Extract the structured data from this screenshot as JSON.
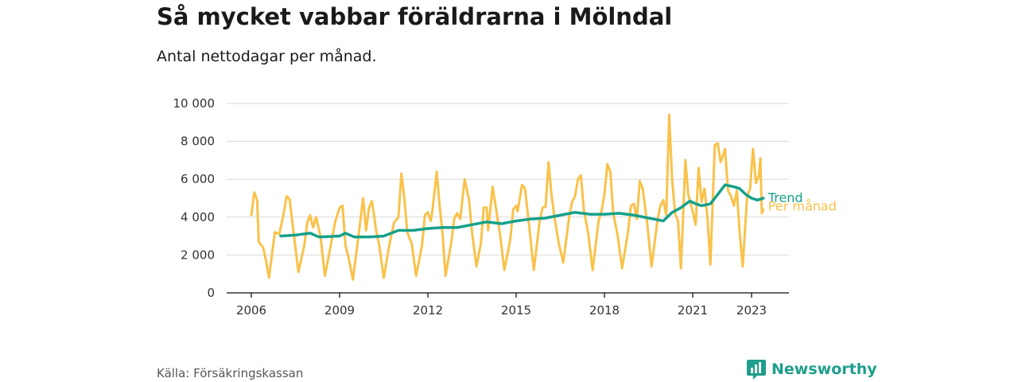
{
  "header": {
    "title": "Så mycket vabbar föräldrarna i Mölndal",
    "subtitle": "Antal nettodagar per månad."
  },
  "footer": {
    "source": "Källa: Försäkringskassan",
    "brand": "Newsworthy"
  },
  "colors": {
    "monthly": "#f9c24b",
    "trend": "#16a08a",
    "grid": "#d8d8d8",
    "axis": "#333333",
    "brand": "#1f9e8c"
  },
  "chart_data": {
    "type": "line",
    "title": "Så mycket vabbar föräldrarna i Mölndal",
    "subtitle": "Antal nettodagar per månad.",
    "xlabel": "",
    "ylabel": "",
    "ylim": [
      0,
      10000
    ],
    "xlim": [
      2005.6,
      2024.2
    ],
    "yticks": [
      0,
      2000,
      4000,
      6000,
      8000,
      10000
    ],
    "ytick_labels": [
      "0",
      "2 000",
      "4 000",
      "6 000",
      "8 000",
      "10 000"
    ],
    "xticks": [
      2006,
      2009,
      2012,
      2015,
      2018,
      2021,
      2023
    ],
    "xtick_labels": [
      "2006",
      "2009",
      "2012",
      "2015",
      "2018",
      "2021",
      "2023"
    ],
    "grid": true,
    "legend": "end-of-line labels",
    "series": [
      {
        "name": "Trend",
        "color": "#16a08a",
        "points": [
          [
            2007.0,
            3000
          ],
          [
            2007.5,
            3050
          ],
          [
            2008.0,
            3150
          ],
          [
            2008.3,
            2950
          ],
          [
            2009.0,
            3000
          ],
          [
            2009.2,
            3150
          ],
          [
            2009.5,
            2950
          ],
          [
            2010.0,
            2950
          ],
          [
            2010.5,
            3000
          ],
          [
            2011.0,
            3300
          ],
          [
            2011.5,
            3300
          ],
          [
            2012.0,
            3400
          ],
          [
            2012.5,
            3450
          ],
          [
            2013.0,
            3450
          ],
          [
            2013.5,
            3600
          ],
          [
            2014.0,
            3750
          ],
          [
            2014.5,
            3650
          ],
          [
            2015.0,
            3800
          ],
          [
            2015.5,
            3900
          ],
          [
            2016.0,
            3950
          ],
          [
            2016.5,
            4100
          ],
          [
            2017.0,
            4250
          ],
          [
            2017.5,
            4150
          ],
          [
            2018.0,
            4150
          ],
          [
            2018.5,
            4200
          ],
          [
            2019.0,
            4100
          ],
          [
            2019.5,
            3950
          ],
          [
            2020.0,
            3800
          ],
          [
            2020.3,
            4250
          ],
          [
            2020.6,
            4500
          ],
          [
            2020.9,
            4850
          ],
          [
            2021.1,
            4700
          ],
          [
            2021.3,
            4600
          ],
          [
            2021.6,
            4700
          ],
          [
            2021.9,
            5300
          ],
          [
            2022.1,
            5700
          ],
          [
            2022.4,
            5600
          ],
          [
            2022.6,
            5500
          ],
          [
            2022.8,
            5200
          ],
          [
            2023.0,
            5000
          ],
          [
            2023.2,
            4900
          ],
          [
            2023.4,
            5000
          ]
        ]
      },
      {
        "name": "Per månad",
        "color": "#f9c24b",
        "points": [
          [
            2006.0,
            4100
          ],
          [
            2006.1,
            5300
          ],
          [
            2006.2,
            4900
          ],
          [
            2006.25,
            2700
          ],
          [
            2006.4,
            2400
          ],
          [
            2006.5,
            1700
          ],
          [
            2006.6,
            800
          ],
          [
            2006.8,
            3200
          ],
          [
            2006.95,
            3100
          ],
          [
            2007.1,
            4200
          ],
          [
            2007.2,
            5100
          ],
          [
            2007.3,
            4950
          ],
          [
            2007.45,
            3000
          ],
          [
            2007.6,
            1100
          ],
          [
            2007.8,
            2500
          ],
          [
            2007.9,
            3700
          ],
          [
            2008.0,
            4100
          ],
          [
            2008.1,
            3450
          ],
          [
            2008.2,
            4000
          ],
          [
            2008.35,
            3000
          ],
          [
            2008.5,
            900
          ],
          [
            2008.7,
            2500
          ],
          [
            2008.85,
            3750
          ],
          [
            2009.0,
            4500
          ],
          [
            2009.1,
            4600
          ],
          [
            2009.2,
            2500
          ],
          [
            2009.3,
            1900
          ],
          [
            2009.45,
            700
          ],
          [
            2009.6,
            2500
          ],
          [
            2009.8,
            5000
          ],
          [
            2009.9,
            3300
          ],
          [
            2010.0,
            4500
          ],
          [
            2010.1,
            4850
          ],
          [
            2010.25,
            3200
          ],
          [
            2010.35,
            2500
          ],
          [
            2010.5,
            800
          ],
          [
            2010.7,
            2600
          ],
          [
            2010.85,
            3700
          ],
          [
            2011.0,
            4000
          ],
          [
            2011.1,
            6300
          ],
          [
            2011.2,
            5000
          ],
          [
            2011.3,
            3200
          ],
          [
            2011.45,
            2600
          ],
          [
            2011.6,
            900
          ],
          [
            2011.8,
            2500
          ],
          [
            2011.9,
            4100
          ],
          [
            2012.0,
            4250
          ],
          [
            2012.1,
            3800
          ],
          [
            2012.15,
            4300
          ],
          [
            2012.3,
            6400
          ],
          [
            2012.4,
            4600
          ],
          [
            2012.5,
            3100
          ],
          [
            2012.6,
            900
          ],
          [
            2012.8,
            2700
          ],
          [
            2012.9,
            3950
          ],
          [
            2013.0,
            4200
          ],
          [
            2013.1,
            3900
          ],
          [
            2013.25,
            6000
          ],
          [
            2013.4,
            4900
          ],
          [
            2013.5,
            3200
          ],
          [
            2013.65,
            1400
          ],
          [
            2013.8,
            2600
          ],
          [
            2013.9,
            4500
          ],
          [
            2014.0,
            4500
          ],
          [
            2014.05,
            3300
          ],
          [
            2014.2,
            5600
          ],
          [
            2014.3,
            4600
          ],
          [
            2014.45,
            3100
          ],
          [
            2014.6,
            1200
          ],
          [
            2014.8,
            2800
          ],
          [
            2014.9,
            4400
          ],
          [
            2015.0,
            4600
          ],
          [
            2015.05,
            4300
          ],
          [
            2015.2,
            5700
          ],
          [
            2015.3,
            5500
          ],
          [
            2015.45,
            3400
          ],
          [
            2015.6,
            1200
          ],
          [
            2015.8,
            3800
          ],
          [
            2015.9,
            4500
          ],
          [
            2016.0,
            4550
          ],
          [
            2016.1,
            6900
          ],
          [
            2016.2,
            5200
          ],
          [
            2016.3,
            4000
          ],
          [
            2016.45,
            2600
          ],
          [
            2016.6,
            1600
          ],
          [
            2016.8,
            4000
          ],
          [
            2016.9,
            4800
          ],
          [
            2017.0,
            5100
          ],
          [
            2017.1,
            6000
          ],
          [
            2017.2,
            6200
          ],
          [
            2017.3,
            4400
          ],
          [
            2017.45,
            3100
          ],
          [
            2017.6,
            1200
          ],
          [
            2017.8,
            3800
          ],
          [
            2017.9,
            4300
          ],
          [
            2018.0,
            5200
          ],
          [
            2018.1,
            6800
          ],
          [
            2018.2,
            6400
          ],
          [
            2018.3,
            4200
          ],
          [
            2018.45,
            3000
          ],
          [
            2018.6,
            1300
          ],
          [
            2018.8,
            3200
          ],
          [
            2018.9,
            4600
          ],
          [
            2019.0,
            4700
          ],
          [
            2019.1,
            3900
          ],
          [
            2019.2,
            5900
          ],
          [
            2019.3,
            5500
          ],
          [
            2019.45,
            3700
          ],
          [
            2019.6,
            1400
          ],
          [
            2019.8,
            3800
          ],
          [
            2019.9,
            4600
          ],
          [
            2020.0,
            4900
          ],
          [
            2020.1,
            4100
          ],
          [
            2020.2,
            9400
          ],
          [
            2020.3,
            6000
          ],
          [
            2020.4,
            4200
          ],
          [
            2020.5,
            3800
          ],
          [
            2020.6,
            1300
          ],
          [
            2020.75,
            7000
          ],
          [
            2020.85,
            5200
          ],
          [
            2021.0,
            4300
          ],
          [
            2021.1,
            3600
          ],
          [
            2021.2,
            6600
          ],
          [
            2021.3,
            4800
          ],
          [
            2021.4,
            5500
          ],
          [
            2021.5,
            4000
          ],
          [
            2021.6,
            1500
          ],
          [
            2021.75,
            7800
          ],
          [
            2021.85,
            7900
          ],
          [
            2021.95,
            6900
          ],
          [
            2022.1,
            7600
          ],
          [
            2022.2,
            5400
          ],
          [
            2022.3,
            5100
          ],
          [
            2022.4,
            4600
          ],
          [
            2022.5,
            5400
          ],
          [
            2022.6,
            3100
          ],
          [
            2022.7,
            1400
          ],
          [
            2022.85,
            5100
          ],
          [
            2022.95,
            5500
          ],
          [
            2023.05,
            7600
          ],
          [
            2023.15,
            5800
          ],
          [
            2023.25,
            6200
          ],
          [
            2023.3,
            7100
          ],
          [
            2023.35,
            4200
          ],
          [
            2023.4,
            4400
          ]
        ]
      }
    ]
  }
}
